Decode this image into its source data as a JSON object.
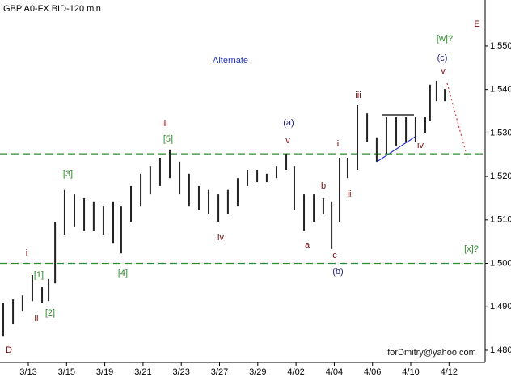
{
  "chart_data": {
    "type": "hilo",
    "title": "GBP A0-FX BID-120 min",
    "color": "#222222",
    "x": [
      -0.31,
      0.2,
      0.7,
      1.21,
      1.72,
      2.06,
      2.4,
      2.9,
      3.41,
      3.92,
      4.42,
      4.93,
      5.44,
      5.86,
      6.37,
      6.88,
      7.38,
      7.89,
      8.4,
      8.91,
      9.41,
      9.92,
      10.43,
      10.94,
      11.44,
      11.95,
      12.46,
      12.97,
      13.47,
      13.98,
      14.49,
      14.91,
      15.42,
      15.93,
      16.43,
      16.86,
      17.28,
      17.7,
      18.21,
      18.72,
      19.22,
      19.73,
      20.24,
      20.75,
      21.25,
      21.76,
      22.01,
      22.35,
      22.78
    ],
    "high": [
      1.4908,
      1.4917,
      1.4926,
      1.4973,
      1.4945,
      1.4964,
      1.5094,
      1.5169,
      1.5159,
      1.515,
      1.5141,
      1.5131,
      1.5141,
      1.5131,
      1.5178,
      1.5206,
      1.5224,
      1.5243,
      1.5262,
      1.5234,
      1.5206,
      1.5178,
      1.5169,
      1.5159,
      1.5169,
      1.5196,
      1.5215,
      1.5215,
      1.5206,
      1.5224,
      1.5252,
      1.5224,
      1.5159,
      1.5159,
      1.515,
      1.5141,
      1.5243,
      1.5243,
      1.5364,
      1.5345,
      1.529,
      1.5336,
      1.5336,
      1.5336,
      1.5336,
      1.5336,
      1.5411,
      1.542,
      1.5401
    ],
    "low": [
      1.4833,
      1.4861,
      1.4889,
      1.4913,
      1.4908,
      1.4913,
      1.4954,
      1.5066,
      1.5085,
      1.5075,
      1.5075,
      1.5066,
      1.5047,
      1.5023,
      1.5094,
      1.5131,
      1.5159,
      1.5178,
      1.5196,
      1.5159,
      1.5131,
      1.5122,
      1.5113,
      1.5094,
      1.5113,
      1.5131,
      1.5178,
      1.5187,
      1.5187,
      1.5196,
      1.5215,
      1.5122,
      1.5075,
      1.5094,
      1.5113,
      1.5033,
      1.5094,
      1.5196,
      1.5215,
      1.528,
      1.5234,
      1.5252,
      1.5271,
      1.528,
      1.528,
      1.5299,
      1.5327,
      1.5373,
      1.5373
    ],
    "xlim": [
      -0.48,
      24.89
    ],
    "xticks": [
      {
        "value": 1,
        "label": "3/13"
      },
      {
        "value": 3,
        "label": "3/15"
      },
      {
        "value": 5,
        "label": "3/19"
      },
      {
        "value": 7,
        "label": "3/21"
      },
      {
        "value": 9,
        "label": "3/23"
      },
      {
        "value": 11,
        "label": "3/27"
      },
      {
        "value": 13,
        "label": "3/29"
      },
      {
        "value": 15,
        "label": "4/02"
      },
      {
        "value": 17,
        "label": "4/04"
      },
      {
        "value": 19,
        "label": "4/06"
      },
      {
        "value": 21,
        "label": "4/10"
      },
      {
        "value": 23,
        "label": "4/12"
      }
    ],
    "ylim": [
      1.4772,
      1.5606
    ],
    "yticks": [
      {
        "value": 1.48,
        "label": "1.480"
      },
      {
        "value": 1.49,
        "label": "1.490"
      },
      {
        "value": 1.5,
        "label": "1.500"
      },
      {
        "value": 1.51,
        "label": "1.510"
      },
      {
        "value": 1.52,
        "label": "1.520"
      },
      {
        "value": 1.53,
        "label": "1.530"
      },
      {
        "value": 1.54,
        "label": "1.540"
      },
      {
        "value": 1.55,
        "label": "1.550"
      }
    ],
    "hlines": [
      1.5252,
      1.5
    ],
    "hline_color": "#2e8b2e",
    "annotations": [
      {
        "text": "Alternate",
        "color": "#2233bb"
      },
      {
        "text": "E",
        "color": "#7a0a0a"
      },
      {
        "text": "D",
        "color": "#7a0a0a"
      },
      {
        "text": "[w]?",
        "color": "#2e8b2e"
      },
      {
        "text": "(c)",
        "color": "#1a1a80"
      },
      {
        "text": "v",
        "color": "#7a0a0a"
      },
      {
        "text": "iii",
        "color": "#7a0a0a"
      },
      {
        "text": "i",
        "color": "#7a0a0a"
      },
      {
        "text": "ii",
        "color": "#7a0a0a"
      },
      {
        "text": "iv",
        "color": "#7a0a0a"
      },
      {
        "text": "b",
        "color": "#7a0a0a"
      },
      {
        "text": "a",
        "color": "#7a0a0a"
      },
      {
        "text": "c",
        "color": "#7a0a0a"
      },
      {
        "text": "(b)",
        "color": "#1a1a80"
      },
      {
        "text": "(a)",
        "color": "#1a1a80"
      },
      {
        "text": "v",
        "color": "#7a0a0a"
      },
      {
        "text": "iii",
        "color": "#7a0a0a"
      },
      {
        "text": "[5]",
        "color": "#2e8b2e"
      },
      {
        "text": "[3]",
        "color": "#2e8b2e"
      },
      {
        "text": "iv",
        "color": "#7a0a0a"
      },
      {
        "text": "[4]",
        "color": "#2e8b2e"
      },
      {
        "text": "i",
        "color": "#7a0a0a"
      },
      {
        "text": "[1]",
        "color": "#2e8b2e"
      },
      {
        "text": "ii",
        "color": "#7a0a0a"
      },
      {
        "text": "[2]",
        "color": "#2e8b2e"
      },
      {
        "text": "[x]?",
        "color": "#2e8b2e"
      },
      {
        "text": "forDmitry@yahoo.com",
        "color": "#111111"
      }
    ]
  }
}
